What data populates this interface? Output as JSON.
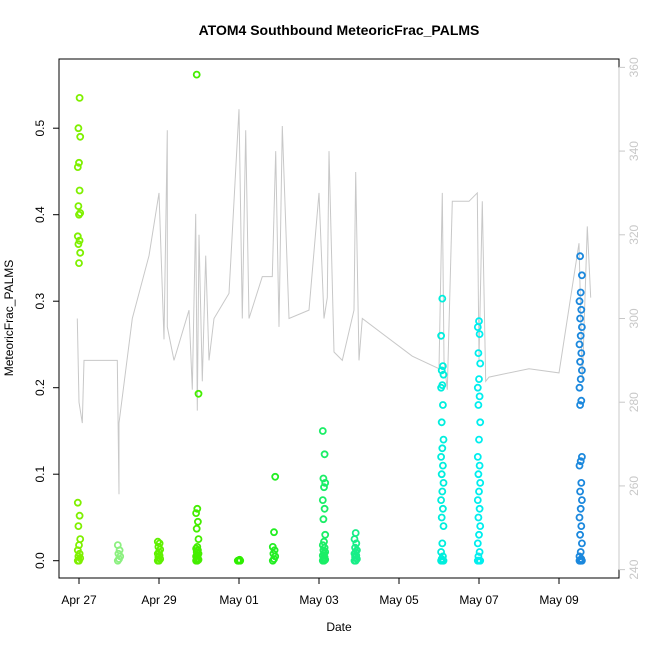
{
  "chart_data": {
    "type": "scatter",
    "title": "ATOM4 Southbound MeteoricFrac_PALMS",
    "xlabel": "Date",
    "ylabel": "MeteoricFrac_PALMS",
    "xlim": [
      "2018-04-26T12:00",
      "2018-05-10T12:00"
    ],
    "ylim": [
      -0.02,
      0.58
    ],
    "y2lim": [
      238,
      362
    ],
    "grid": false,
    "legend": "none",
    "x_ticks": [
      {
        "date": "2018-04-27",
        "label": "Apr 27"
      },
      {
        "date": "2018-04-29",
        "label": "Apr 29"
      },
      {
        "date": "2018-05-01",
        "label": "May 01"
      },
      {
        "date": "2018-05-03",
        "label": "May 03"
      },
      {
        "date": "2018-05-05",
        "label": "May 05"
      },
      {
        "date": "2018-05-07",
        "label": "May 07"
      },
      {
        "date": "2018-05-09",
        "label": "May 09"
      }
    ],
    "y_ticks": [
      {
        "value": 0.0,
        "label": "0.0"
      },
      {
        "value": 0.1,
        "label": "0.1"
      },
      {
        "value": 0.2,
        "label": "0.2"
      },
      {
        "value": 0.3,
        "label": "0.3"
      },
      {
        "value": 0.4,
        "label": "0.4"
      },
      {
        "value": 0.5,
        "label": "0.5"
      }
    ],
    "y2_ticks": [
      {
        "value": 240,
        "label": "240"
      },
      {
        "value": 260,
        "label": "260"
      },
      {
        "value": 280,
        "label": "280"
      },
      {
        "value": 300,
        "label": "300"
      },
      {
        "value": 320,
        "label": "320"
      },
      {
        "value": 340,
        "label": "340"
      },
      {
        "value": 360,
        "label": "360"
      }
    ],
    "colors": {
      "background_line": "#c8c8c8"
    },
    "scatter_flights": [
      {
        "date": "2018-04-27T00:00",
        "color": "#7ff000",
        "values": [
          0.0,
          0.0,
          0.003,
          0.005,
          0.008,
          0.012,
          0.018,
          0.025,
          0.04,
          0.052,
          0.067,
          0.344,
          0.356,
          0.366,
          0.37,
          0.375,
          0.4,
          0.402,
          0.41,
          0.428,
          0.455,
          0.46,
          0.49,
          0.5,
          0.535
        ]
      },
      {
        "date": "2018-04-28T00:00",
        "color": "#8cf080",
        "values": [
          0.0,
          0.002,
          0.005,
          0.008,
          0.012,
          0.018
        ]
      },
      {
        "date": "2018-04-29T00:00",
        "color": "#5ff000",
        "values": [
          0.0,
          0.0,
          0.002,
          0.004,
          0.006,
          0.008,
          0.01,
          0.013,
          0.016,
          0.02,
          0.022
        ]
      },
      {
        "date": "2018-04-29T23:00",
        "color": "#44ee00",
        "values": [
          0.0,
          0.0,
          0.001,
          0.002,
          0.003,
          0.005,
          0.006,
          0.008,
          0.01,
          0.012,
          0.014,
          0.016,
          0.025,
          0.037,
          0.045,
          0.055,
          0.06,
          0.193,
          0.562
        ]
      },
      {
        "date": "2018-05-01T00:00",
        "color": "#2eee00",
        "values": [
          0.0,
          0.0,
          0.0,
          0.0,
          0.001
        ]
      },
      {
        "date": "2018-05-01T21:00",
        "color": "#22ee22",
        "values": [
          0.0,
          0.002,
          0.005,
          0.008,
          0.012,
          0.016,
          0.033,
          0.097
        ]
      },
      {
        "date": "2018-05-03T03:00",
        "color": "#1aee66",
        "values": [
          0.0,
          0.0,
          0.001,
          0.002,
          0.004,
          0.006,
          0.008,
          0.01,
          0.012,
          0.015,
          0.018,
          0.022,
          0.03,
          0.048,
          0.06,
          0.07,
          0.085,
          0.09,
          0.095,
          0.123,
          0.15
        ]
      },
      {
        "date": "2018-05-03T22:00",
        "color": "#18ee88",
        "values": [
          0.0,
          0.0,
          0.002,
          0.004,
          0.006,
          0.008,
          0.01,
          0.012,
          0.015,
          0.02,
          0.025,
          0.032
        ]
      },
      {
        "date": "2018-05-06T02:00",
        "color": "#00eedd",
        "values": [
          0.0,
          0.0,
          0.0,
          0.002,
          0.005,
          0.01,
          0.02,
          0.04,
          0.05,
          0.06,
          0.07,
          0.08,
          0.09,
          0.1,
          0.11,
          0.12,
          0.13,
          0.14,
          0.16,
          0.18,
          0.2,
          0.203,
          0.215,
          0.22,
          0.225,
          0.26,
          0.303
        ]
      },
      {
        "date": "2018-05-07T00:00",
        "color": "#00eeee",
        "values": [
          0.0,
          0.0,
          0.0,
          0.005,
          0.01,
          0.02,
          0.03,
          0.04,
          0.05,
          0.06,
          0.07,
          0.08,
          0.09,
          0.1,
          0.11,
          0.12,
          0.14,
          0.16,
          0.18,
          0.19,
          0.2,
          0.21,
          0.228,
          0.24,
          0.262,
          0.27,
          0.277
        ]
      },
      {
        "date": "2018-05-09T13:00",
        "color": "#1b88dd",
        "values": [
          0.0,
          0.0,
          0.0,
          0.0,
          0.002,
          0.005,
          0.01,
          0.02,
          0.03,
          0.04,
          0.05,
          0.06,
          0.07,
          0.08,
          0.09,
          0.11,
          0.115,
          0.12,
          0.18,
          0.185,
          0.2,
          0.21,
          0.22,
          0.23,
          0.24,
          0.25,
          0.26,
          0.27,
          0.28,
          0.29,
          0.3,
          0.31,
          0.33,
          0.352
        ]
      }
    ],
    "background_series": {
      "name": "",
      "axis": "right",
      "points": [
        [
          "2018-04-26T23:00",
          300
        ],
        [
          "2018-04-27T00:00",
          280
        ],
        [
          "2018-04-27T02:00",
          275
        ],
        [
          "2018-04-27T03:00",
          290
        ],
        [
          "2018-04-27T08:00",
          290
        ],
        [
          "2018-04-27T14:00",
          290
        ],
        [
          "2018-04-27T23:00",
          290
        ],
        [
          "2018-04-28T00:00",
          258
        ],
        [
          "2018-04-28T00:00",
          275
        ],
        [
          "2018-04-28T08:00",
          300
        ],
        [
          "2018-04-28T18:00",
          315
        ],
        [
          "2018-04-29T00:00",
          330
        ],
        [
          "2018-04-29T03:00",
          295
        ],
        [
          "2018-04-29T05:00",
          345
        ],
        [
          "2018-04-29T05:00",
          298
        ],
        [
          "2018-04-29T09:00",
          290
        ],
        [
          "2018-04-29T18:00",
          302
        ],
        [
          "2018-04-29T20:00",
          283
        ],
        [
          "2018-04-29T22:00",
          325
        ],
        [
          "2018-04-29T23:00",
          278
        ],
        [
          "2018-04-30T00:00",
          320
        ],
        [
          "2018-04-30T02:00",
          285
        ],
        [
          "2018-04-30T04:00",
          315
        ],
        [
          "2018-04-30T06:00",
          290
        ],
        [
          "2018-04-30T09:00",
          300
        ],
        [
          "2018-04-30T18:00",
          306
        ],
        [
          "2018-05-01T00:00",
          350
        ],
        [
          "2018-05-01T02:00",
          300
        ],
        [
          "2018-05-01T04:00",
          345
        ],
        [
          "2018-05-01T06:00",
          300
        ],
        [
          "2018-05-01T14:00",
          310
        ],
        [
          "2018-05-01T20:00",
          310
        ],
        [
          "2018-05-01T22:00",
          340
        ],
        [
          "2018-05-02T00:00",
          298
        ],
        [
          "2018-05-02T02:00",
          346
        ],
        [
          "2018-05-02T06:00",
          300
        ],
        [
          "2018-05-02T18:00",
          302
        ],
        [
          "2018-05-03T00:00",
          330
        ],
        [
          "2018-05-03T03:00",
          300
        ],
        [
          "2018-05-03T05:00",
          305
        ],
        [
          "2018-05-03T06:00",
          340
        ],
        [
          "2018-05-03T09:00",
          292
        ],
        [
          "2018-05-03T14:00",
          290
        ],
        [
          "2018-05-03T21:00",
          302
        ],
        [
          "2018-05-03T22:00",
          335
        ],
        [
          "2018-05-04T00:00",
          290
        ],
        [
          "2018-05-04T02:00",
          300
        ],
        [
          "2018-05-05T08:00",
          291
        ],
        [
          "2018-05-06T00:00",
          288
        ],
        [
          "2018-05-06T02:00",
          330
        ],
        [
          "2018-05-06T03:00",
          290
        ],
        [
          "2018-05-06T05:00",
          283
        ],
        [
          "2018-05-06T08:00",
          328
        ],
        [
          "2018-05-06T18:00",
          328
        ],
        [
          "2018-05-06T23:00",
          330
        ],
        [
          "2018-05-07T00:00",
          290
        ],
        [
          "2018-05-07T02:00",
          328
        ],
        [
          "2018-05-07T04:00",
          285
        ],
        [
          "2018-05-07T06:00",
          286
        ],
        [
          "2018-05-08T06:00",
          288
        ],
        [
          "2018-05-09T00:00",
          287
        ],
        [
          "2018-05-09T12:00",
          318
        ],
        [
          "2018-05-09T14:00",
          285
        ],
        [
          "2018-05-09T17:00",
          322
        ],
        [
          "2018-05-09T19:00",
          305
        ]
      ]
    }
  }
}
